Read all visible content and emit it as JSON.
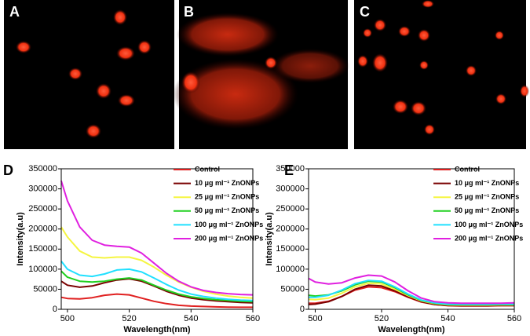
{
  "images": [
    {
      "label": "A"
    },
    {
      "label": "B"
    },
    {
      "label": "C"
    }
  ],
  "chart_data": [
    {
      "type": "line",
      "panel": "D",
      "xlabel": "Wavelength(nm)",
      "ylabel": "Intensity(a.u)",
      "x": [
        498,
        500,
        504,
        508,
        512,
        516,
        520,
        524,
        528,
        532,
        536,
        540,
        544,
        548,
        552,
        556,
        560
      ],
      "xlim": [
        498,
        560
      ],
      "xticks": [
        500,
        520,
        540,
        560
      ],
      "ylim": [
        0,
        350000
      ],
      "yticks": [
        0,
        50000,
        100000,
        150000,
        200000,
        250000,
        300000,
        350000
      ],
      "series": [
        {
          "name": "Control",
          "color": "#e02020",
          "values": [
            30000,
            27000,
            26000,
            29000,
            35000,
            38000,
            36000,
            28000,
            20000,
            14000,
            10000,
            8000,
            7000,
            6000,
            5500,
            5000,
            5000
          ]
        },
        {
          "name": "10 μg ml⁻¹ ZnONPs",
          "color": "#7a0000",
          "values": [
            70000,
            60000,
            55000,
            58000,
            66000,
            73000,
            76000,
            70000,
            58000,
            45000,
            35000,
            28000,
            24000,
            21000,
            19000,
            17000,
            16000
          ]
        },
        {
          "name": "25 μg ml⁻¹ ZnONPs",
          "color": "#f5f540",
          "values": [
            205000,
            180000,
            145000,
            130000,
            128000,
            130000,
            130000,
            122000,
            105000,
            85000,
            68000,
            55000,
            45000,
            38000,
            33000,
            30000,
            28000
          ]
        },
        {
          "name": "50 μg ml⁻¹ ZnONPs",
          "color": "#20d020",
          "values": [
            95000,
            80000,
            70000,
            68000,
            70000,
            75000,
            78000,
            73000,
            60000,
            48000,
            38000,
            31000,
            27000,
            24000,
            22000,
            20000,
            19000
          ]
        },
        {
          "name": "100 μg ml⁻¹ ZnONPs",
          "color": "#20e0ff",
          "values": [
            120000,
            100000,
            85000,
            82000,
            88000,
            98000,
            100000,
            93000,
            78000,
            62000,
            48000,
            38000,
            32000,
            28000,
            25000,
            23000,
            22000
          ]
        },
        {
          "name": "200 μg ml⁻¹ ZnONPs",
          "color": "#e020e0",
          "values": [
            320000,
            270000,
            205000,
            172000,
            160000,
            157000,
            155000,
            140000,
            115000,
            90000,
            70000,
            56000,
            47000,
            42000,
            39000,
            37000,
            36000
          ]
        }
      ]
    },
    {
      "type": "line",
      "panel": "E",
      "xlabel": "Wavelength(nm)",
      "ylabel": "Intensity(a.u)",
      "x": [
        498,
        500,
        504,
        508,
        512,
        516,
        520,
        524,
        528,
        532,
        536,
        540,
        544,
        548,
        552,
        556,
        560
      ],
      "xlim": [
        498,
        560
      ],
      "xticks": [
        500,
        520,
        540,
        560
      ],
      "ylim": [
        0,
        350000
      ],
      "yticks": [
        0,
        50000,
        100000,
        150000,
        200000,
        250000,
        300000,
        350000
      ],
      "series": [
        {
          "name": "Control",
          "color": "#e02020",
          "values": [
            15000,
            15000,
            20000,
            32000,
            48000,
            56000,
            54000,
            44000,
            30000,
            18000,
            12000,
            9000,
            8500,
            8500,
            8500,
            9000,
            9000
          ]
        },
        {
          "name": "10 μg ml⁻¹ ZnONPs",
          "color": "#7a0000",
          "values": [
            12000,
            13000,
            19000,
            32000,
            50000,
            60000,
            58000,
            46000,
            31000,
            19000,
            12000,
            9500,
            9000,
            9000,
            9000,
            9500,
            9500
          ]
        },
        {
          "name": "25 μg ml⁻¹ ZnONPs",
          "color": "#f5f540",
          "values": [
            25000,
            24000,
            28000,
            40000,
            56000,
            65000,
            63000,
            50000,
            34000,
            21000,
            14000,
            11000,
            10500,
            10500,
            10500,
            11000,
            11000
          ]
        },
        {
          "name": "50 μg ml⁻¹ ZnONPs",
          "color": "#20d020",
          "values": [
            35000,
            33000,
            36000,
            46000,
            61000,
            70000,
            68000,
            54000,
            36000,
            22000,
            15000,
            12000,
            11500,
            11500,
            11500,
            12000,
            12000
          ]
        },
        {
          "name": "100 μg ml⁻¹ ZnONPs",
          "color": "#20e0ff",
          "values": [
            30000,
            30000,
            35000,
            48000,
            64000,
            72000,
            70000,
            56000,
            38000,
            23000,
            16000,
            13000,
            12500,
            12500,
            12500,
            13000,
            13000
          ]
        },
        {
          "name": "200 μg ml⁻¹ ZnONPs",
          "color": "#e020e0",
          "values": [
            77000,
            68000,
            63000,
            66000,
            78000,
            85000,
            83000,
            68000,
            46000,
            28000,
            19000,
            16000,
            15000,
            15000,
            15000,
            15000,
            16000
          ]
        }
      ]
    }
  ]
}
